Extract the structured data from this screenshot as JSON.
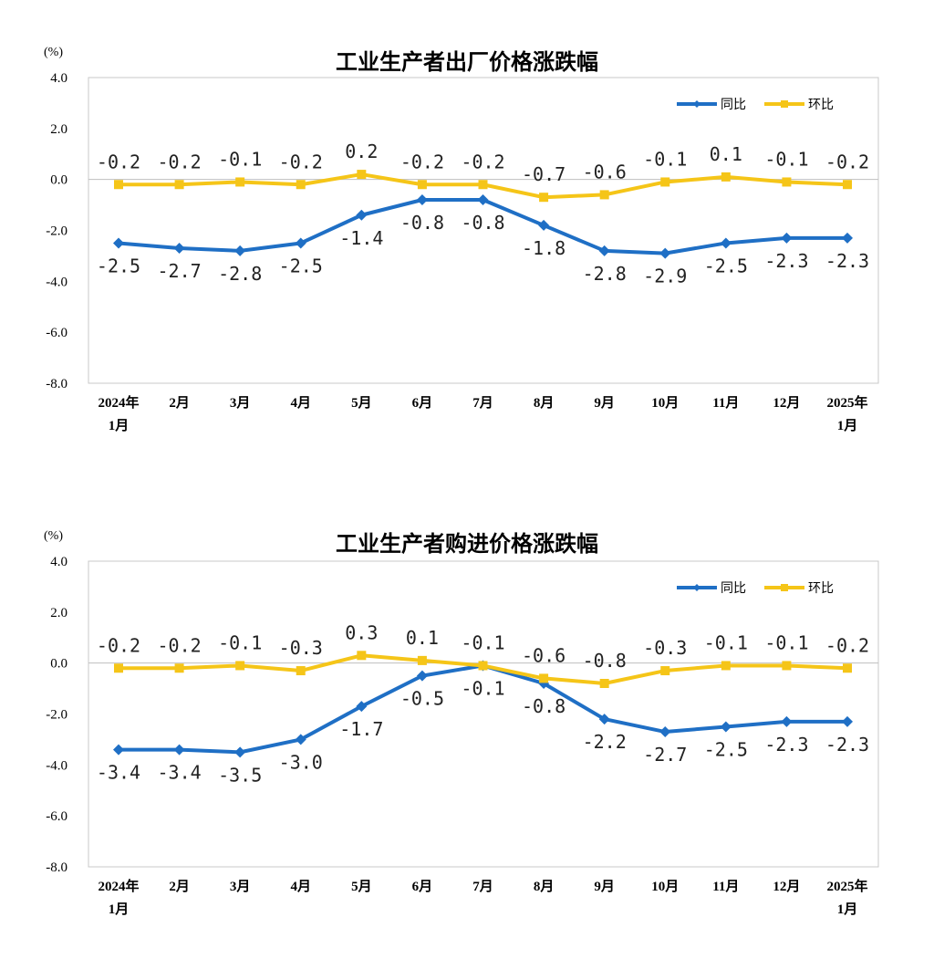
{
  "chart_data": [
    {
      "type": "line",
      "title": "工业生产者出厂价格涨跌幅",
      "ylabel": "(%)",
      "ylim": [
        -8.0,
        4.0
      ],
      "yticks": [
        "4.0",
        "2.0",
        "0.0",
        "-2.0",
        "-4.0",
        "-6.0",
        "-8.0"
      ],
      "grid": false,
      "legend_position": "top-right",
      "categories": [
        [
          "2024年",
          "1月"
        ],
        [
          "2月"
        ],
        [
          "3月"
        ],
        [
          "4月"
        ],
        [
          "5月"
        ],
        [
          "6月"
        ],
        [
          "7月"
        ],
        [
          "8月"
        ],
        [
          "9月"
        ],
        [
          "10月"
        ],
        [
          "11月"
        ],
        [
          "12月"
        ],
        [
          "2025年",
          "1月"
        ]
      ],
      "series": [
        {
          "name": "同比",
          "color": "#1f6fc5",
          "marker": "diamond",
          "values": [
            -2.5,
            -2.7,
            -2.8,
            -2.5,
            -1.4,
            -0.8,
            -0.8,
            -1.8,
            -2.8,
            -2.9,
            -2.5,
            -2.3,
            -2.3
          ],
          "labels": [
            "-2.5",
            "-2.7",
            "-2.8",
            "-2.5",
            "-1.4",
            "-0.8",
            "-0.8",
            "-1.8",
            "-2.8",
            "-2.9",
            "-2.5",
            "-2.3",
            "-2.3"
          ]
        },
        {
          "name": "环比",
          "color": "#f5c518",
          "marker": "square",
          "values": [
            -0.2,
            -0.2,
            -0.1,
            -0.2,
            0.2,
            -0.2,
            -0.2,
            -0.7,
            -0.6,
            -0.1,
            0.1,
            -0.1,
            -0.2
          ],
          "labels": [
            "-0.2",
            "-0.2",
            "-0.1",
            "-0.2",
            "0.2",
            "-0.2",
            "-0.2",
            "-0.7",
            "-0.6",
            "-0.1",
            "0.1",
            "-0.1",
            "-0.2"
          ]
        }
      ]
    },
    {
      "type": "line",
      "title": "工业生产者购进价格涨跌幅",
      "ylabel": "(%)",
      "ylim": [
        -8.0,
        4.0
      ],
      "yticks": [
        "4.0",
        "2.0",
        "0.0",
        "-2.0",
        "-4.0",
        "-6.0",
        "-8.0"
      ],
      "grid": false,
      "legend_position": "top-right",
      "categories": [
        [
          "2024年",
          "1月"
        ],
        [
          "2月"
        ],
        [
          "3月"
        ],
        [
          "4月"
        ],
        [
          "5月"
        ],
        [
          "6月"
        ],
        [
          "7月"
        ],
        [
          "8月"
        ],
        [
          "9月"
        ],
        [
          "10月"
        ],
        [
          "11月"
        ],
        [
          "12月"
        ],
        [
          "2025年",
          "1月"
        ]
      ],
      "series": [
        {
          "name": "同比",
          "color": "#1f6fc5",
          "marker": "diamond",
          "values": [
            -3.4,
            -3.4,
            -3.5,
            -3.0,
            -1.7,
            -0.5,
            -0.1,
            -0.8,
            -2.2,
            -2.7,
            -2.5,
            -2.3,
            -2.3
          ],
          "labels": [
            "-3.4",
            "-3.4",
            "-3.5",
            "-3.0",
            "-1.7",
            "-0.5",
            "-0.1",
            "-0.8",
            "-2.2",
            "-2.7",
            "-2.5",
            "-2.3",
            "-2.3"
          ]
        },
        {
          "name": "环比",
          "color": "#f5c518",
          "marker": "square",
          "values": [
            -0.2,
            -0.2,
            -0.1,
            -0.3,
            0.3,
            0.1,
            -0.1,
            -0.6,
            -0.8,
            -0.3,
            -0.1,
            -0.1,
            -0.2
          ],
          "labels": [
            "-0.2",
            "-0.2",
            "-0.1",
            "-0.3",
            "0.3",
            "0.1",
            "-0.1",
            "-0.6",
            "-0.8",
            "-0.3",
            "-0.1",
            "-0.1",
            "-0.2"
          ]
        }
      ]
    }
  ]
}
